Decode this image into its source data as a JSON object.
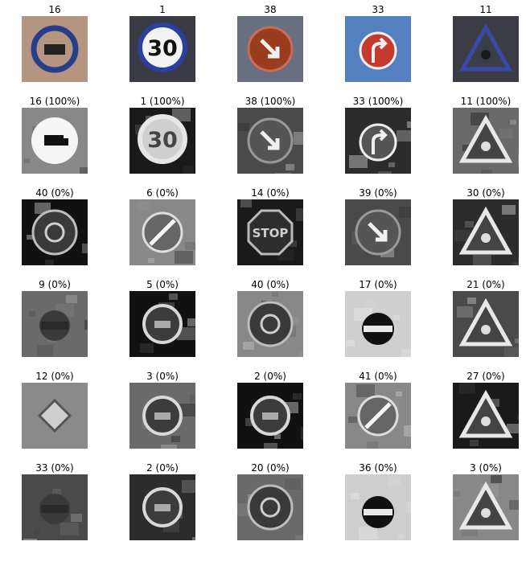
{
  "figure": {
    "rows": [
      {
        "cells": [
          {
            "label": "16",
            "icon": "no-trucks-sign",
            "mode": "color"
          },
          {
            "label": "1",
            "icon": "speed-limit-30-sign",
            "mode": "color"
          },
          {
            "label": "38",
            "icon": "keep-right-sign",
            "mode": "color"
          },
          {
            "label": "33",
            "icon": "turn-right-ahead-sign",
            "mode": "color"
          },
          {
            "label": "11",
            "icon": "right-of-way-triangle-sign",
            "mode": "color"
          }
        ]
      },
      {
        "cells": [
          {
            "label": "16 (100%)",
            "icon": "no-trucks-sign",
            "mode": "gray"
          },
          {
            "label": "1 (100%)",
            "icon": "speed-limit-30-sign",
            "mode": "gray"
          },
          {
            "label": "38 (100%)",
            "icon": "keep-right-sign",
            "mode": "gray"
          },
          {
            "label": "33 (100%)",
            "icon": "turn-right-ahead-sign",
            "mode": "gray"
          },
          {
            "label": "11 (100%)",
            "icon": "warning-triangle-sign",
            "mode": "gray"
          }
        ]
      },
      {
        "cells": [
          {
            "label": "40 (0%)",
            "icon": "roundabout-sign",
            "mode": "gray"
          },
          {
            "label": "6 (0%)",
            "icon": "end-of-limit-sign",
            "mode": "gray"
          },
          {
            "label": "14 (0%)",
            "icon": "stop-sign",
            "mode": "gray"
          },
          {
            "label": "39 (0%)",
            "icon": "keep-left-sign",
            "mode": "gray"
          },
          {
            "label": "30 (0%)",
            "icon": "warning-triangle-sign",
            "mode": "gray"
          }
        ]
      },
      {
        "cells": [
          {
            "label": "9 (0%)",
            "icon": "dark-sign",
            "mode": "gray"
          },
          {
            "label": "5 (0%)",
            "icon": "speed-limit-sign",
            "mode": "gray"
          },
          {
            "label": "40 (0%)",
            "icon": "roundabout-sign",
            "mode": "gray"
          },
          {
            "label": "17 (0%)",
            "icon": "no-entry-sign",
            "mode": "gray"
          },
          {
            "label": "21 (0%)",
            "icon": "warning-triangle-sign",
            "mode": "gray"
          }
        ]
      },
      {
        "cells": [
          {
            "label": "12 (0%)",
            "icon": "priority-road-sign",
            "mode": "gray"
          },
          {
            "label": "3 (0%)",
            "icon": "speed-limit-sign",
            "mode": "gray"
          },
          {
            "label": "2 (0%)",
            "icon": "speed-limit-sign",
            "mode": "gray"
          },
          {
            "label": "41 (0%)",
            "icon": "end-of-limit-sign",
            "mode": "gray"
          },
          {
            "label": "27 (0%)",
            "icon": "pedestrian-triangle-sign",
            "mode": "gray"
          }
        ]
      },
      {
        "cells": [
          {
            "label": "33 (0%)",
            "icon": "dark-sign",
            "mode": "gray"
          },
          {
            "label": "2 (0%)",
            "icon": "speed-limit-sign",
            "mode": "gray"
          },
          {
            "label": "20 (0%)",
            "icon": "roundabout-sign",
            "mode": "gray"
          },
          {
            "label": "36 (0%)",
            "icon": "no-entry-sign",
            "mode": "gray"
          },
          {
            "label": "3 (0%)",
            "icon": "warning-triangle-sign",
            "mode": "gray"
          }
        ]
      }
    ]
  }
}
